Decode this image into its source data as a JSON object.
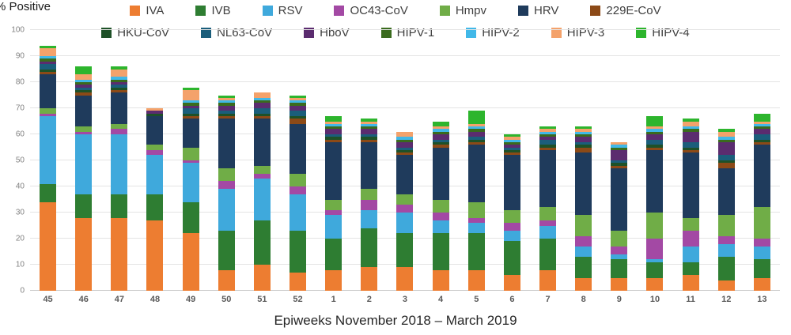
{
  "page": {
    "y_axis_label": "% Positive",
    "x_axis_title": "Epiweeks November 2018 – March 2019"
  },
  "chart_data": {
    "type": "bar",
    "stacked": true,
    "title": "",
    "ylabel": "% Positive",
    "xlabel": "Epiweeks November 2018 – March 2019",
    "ylim": [
      0,
      100
    ],
    "yticks": [
      0,
      10,
      20,
      30,
      40,
      50,
      60,
      70,
      80,
      90,
      100
    ],
    "grid": true,
    "legend_position": "top",
    "legend_rows": [
      7,
      7
    ],
    "categories": [
      "45",
      "46",
      "47",
      "48",
      "49",
      "50",
      "51",
      "52",
      "1",
      "2",
      "3",
      "4",
      "5",
      "6",
      "7",
      "8",
      "9",
      "10",
      "11",
      "12",
      "13"
    ],
    "series": [
      {
        "name": "IVA",
        "color": "#ED7D31",
        "values": [
          34,
          28,
          28,
          27,
          22,
          8,
          10,
          7,
          8,
          9,
          9,
          8,
          8,
          6,
          8,
          5,
          5,
          5,
          6,
          4,
          5
        ]
      },
      {
        "name": "IVB",
        "color": "#2E7D32",
        "values": [
          7,
          9,
          9,
          10,
          12,
          15,
          17,
          16,
          12,
          15,
          13,
          14,
          14,
          13,
          12,
          8,
          7,
          6,
          5,
          9,
          7
        ]
      },
      {
        "name": "RSV",
        "color": "#3FA9DC",
        "values": [
          26,
          23,
          23,
          15,
          15,
          16,
          16,
          14,
          9,
          7,
          8,
          5,
          4,
          4,
          5,
          4,
          2,
          1,
          6,
          5,
          5
        ]
      },
      {
        "name": "OC43-CoV",
        "color": "#A349A4",
        "values": [
          1,
          1,
          2,
          2,
          1,
          3,
          2,
          3,
          2,
          4,
          3,
          3,
          2,
          3,
          2,
          4,
          3,
          8,
          6,
          3,
          3
        ]
      },
      {
        "name": "Hmpv",
        "color": "#70AD47",
        "values": [
          2,
          2,
          2,
          2,
          5,
          5,
          3,
          5,
          4,
          4,
          4,
          5,
          6,
          5,
          5,
          8,
          6,
          10,
          5,
          8,
          12
        ]
      },
      {
        "name": "HRV",
        "color": "#1F3B5C",
        "values": [
          13,
          12,
          12,
          11,
          11,
          19,
          18,
          19,
          22,
          18,
          15,
          20,
          22,
          21,
          22,
          24,
          24,
          24,
          25,
          18,
          24
        ]
      },
      {
        "name": "229E-CoV",
        "color": "#8C4A17",
        "values": [
          1,
          1,
          1,
          0,
          1,
          1,
          1,
          2,
          1,
          1,
          1,
          1,
          1,
          1,
          1,
          2,
          1,
          1,
          1,
          2,
          1
        ]
      },
      {
        "name": "HKU-CoV",
        "color": "#1E5128",
        "values": [
          1,
          1,
          1,
          1,
          1,
          1,
          1,
          1,
          1,
          1,
          1,
          1,
          1,
          1,
          1,
          1,
          1,
          1,
          1,
          1,
          1
        ]
      },
      {
        "name": "NL63-CoV",
        "color": "#1B5E7B",
        "values": [
          2,
          1,
          1,
          0,
          2,
          1,
          2,
          2,
          1,
          1,
          1,
          1,
          1,
          1,
          2,
          1,
          1,
          2,
          2,
          2,
          2
        ]
      },
      {
        "name": "HboV",
        "color": "#5B2C6F",
        "values": [
          1,
          1,
          1,
          1,
          1,
          2,
          2,
          2,
          2,
          2,
          2,
          2,
          2,
          1,
          1,
          2,
          4,
          2,
          4,
          5,
          2
        ]
      },
      {
        "name": "HIPV-1",
        "color": "#3A6B1E",
        "values": [
          1,
          1,
          1,
          0,
          1,
          1,
          1,
          1,
          1,
          1,
          1,
          1,
          1,
          1,
          1,
          1,
          1,
          1,
          1,
          1,
          1
        ]
      },
      {
        "name": "HIPV-2",
        "color": "#41B8E8",
        "values": [
          1,
          1,
          1,
          0,
          1,
          1,
          1,
          1,
          1,
          1,
          1,
          1,
          1,
          1,
          1,
          1,
          1,
          1,
          1,
          1,
          1
        ]
      },
      {
        "name": "HIPV-3",
        "color": "#F4A26B",
        "values": [
          3,
          2,
          3,
          1,
          4,
          1,
          2,
          1,
          1,
          1,
          2,
          1,
          1,
          1,
          1,
          1,
          1,
          1,
          2,
          2,
          1
        ]
      },
      {
        "name": "HIPV-4",
        "color": "#2DB52D",
        "values": [
          1,
          3,
          1,
          0,
          1,
          1,
          0,
          1,
          2,
          1,
          0,
          2,
          5,
          1,
          1,
          1,
          0,
          4,
          1,
          1,
          3
        ]
      }
    ]
  }
}
